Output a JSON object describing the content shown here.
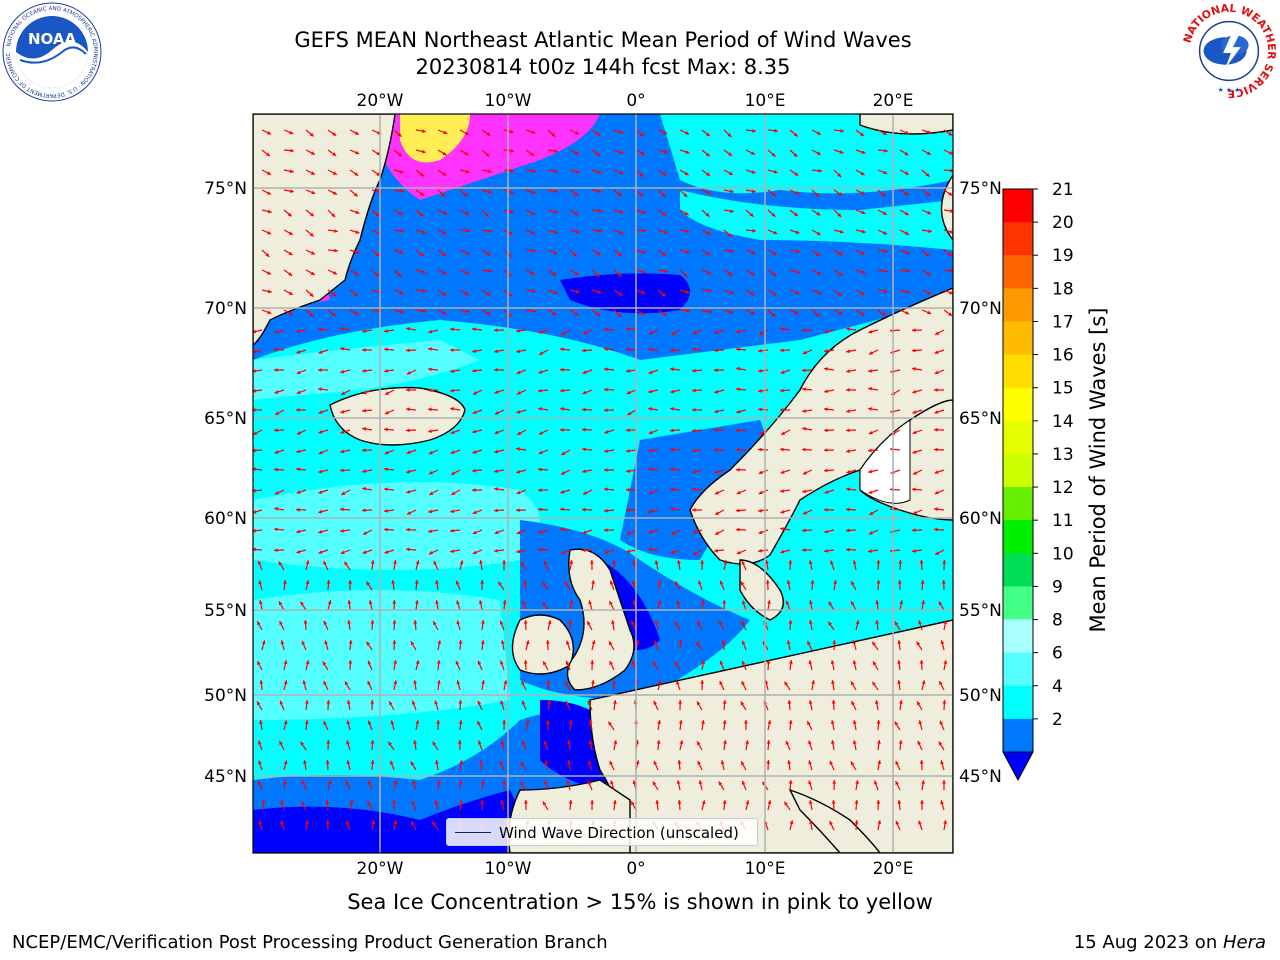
{
  "header": {
    "title_line1": "GEFS MEAN Northeast Atlantic Mean Period of Wind Waves",
    "title_line2": "20230814 t00z 144h fcst   Max: 8.35"
  },
  "map": {
    "top_lon_labels": [
      "20°W",
      "10°W",
      "0°",
      "10°E",
      "20°E"
    ],
    "bottom_lon_labels": [
      "20°W",
      "10°W",
      "0°",
      "10°E",
      "20°E"
    ],
    "left_lat_labels": [
      "75°N",
      "70°N",
      "65°N",
      "60°N",
      "55°N",
      "50°N",
      "45°N"
    ],
    "right_lat_labels": [
      "75°N",
      "70°N",
      "65°N",
      "60°N",
      "55°N",
      "50°N",
      "45°N"
    ],
    "ocean_colors": {
      "deep_blue": "#0000ff",
      "mid_blue": "#0077ff",
      "cyan": "#00ffff",
      "light_cyan": "#55ffff",
      "land": "#efeedc",
      "ice_pink": "#ff33ff",
      "ice_yellow": "#ffee55",
      "arrow_red": "#ff0000"
    }
  },
  "legend": {
    "label": "Wind Wave Direction (unscaled)"
  },
  "colorbar": {
    "label": "Mean Period of Wind Waves [s]",
    "ticks": [
      "21",
      "20",
      "19",
      "18",
      "17",
      "16",
      "15",
      "14",
      "13",
      "12",
      "11",
      "10",
      "9",
      "8",
      "6",
      "4",
      "2"
    ],
    "colors": [
      "#ff0000",
      "#ff3300",
      "#ff6600",
      "#ff9900",
      "#ffbb00",
      "#ffdd00",
      "#ffff00",
      "#e6ff00",
      "#ccff00",
      "#66ee00",
      "#00ee00",
      "#00dd55",
      "#44ff88",
      "#aaffff",
      "#55ffff",
      "#00ffff",
      "#0077ff",
      "#0000ff"
    ]
  },
  "caption": "Sea Ice Concentration > 15% is shown in pink to yellow",
  "footer": {
    "left": "NCEP/EMC/Verification Post Processing Product Generation Branch",
    "right_date": "15 Aug 2023 on ",
    "right_host": "Hera"
  },
  "logos": {
    "noaa_text": "NOAA",
    "noaa_ring_text": "NATIONAL OCEANIC AND ATMOSPHERIC ADMINISTRATION · U.S. DEPARTMENT OF COMMERCE",
    "nws_ring_text": "NATIONAL WEATHER SERVICE"
  }
}
